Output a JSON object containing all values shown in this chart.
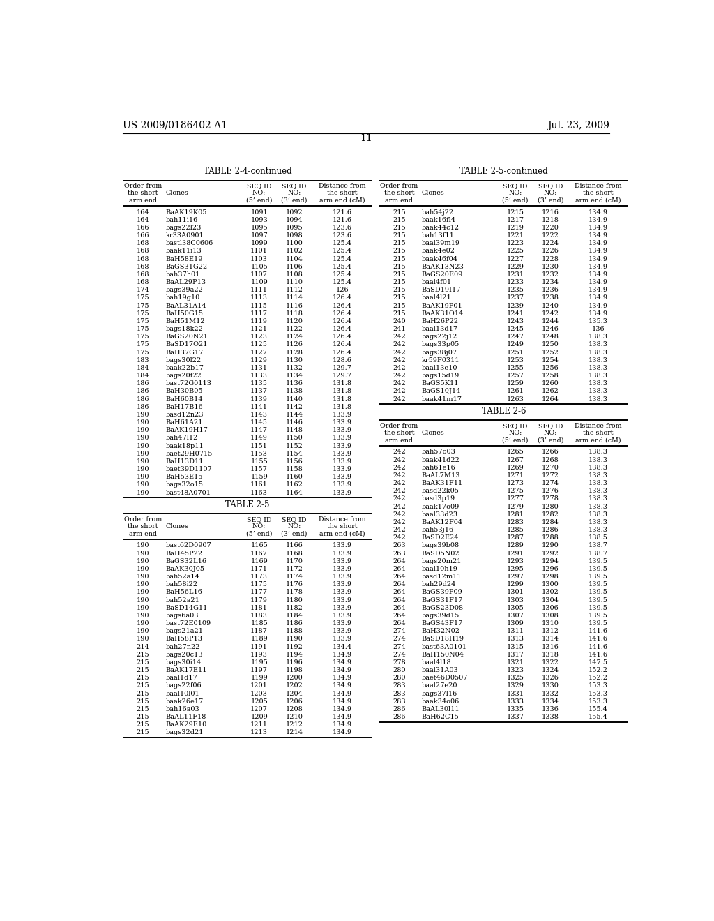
{
  "page_header_left": "US 2009/0186402 A1",
  "page_header_right": "Jul. 23, 2009",
  "page_number": "11",
  "background_color": "#ffffff",
  "text_color": "#000000",
  "table_24_title": "TABLE 2-4-continued",
  "table_24_col_headers": [
    "Order from\nthe short\narm end",
    "Clones",
    "SEQ ID\nNO:\n(5’ end)",
    "SEQ ID\nNO:\n(3’ end)",
    "Distance from\nthe short\narm end (cM)"
  ],
  "table_24_data": [
    [
      "164",
      "BaAK19K05",
      "1091",
      "1092",
      "121.6"
    ],
    [
      "164",
      "bah11i16",
      "1093",
      "1094",
      "121.6"
    ],
    [
      "166",
      "bags22l23",
      "1095",
      "1095",
      "123.6"
    ],
    [
      "166",
      "kr33A0901",
      "1097",
      "1098",
      "123.6"
    ],
    [
      "168",
      "bastl38C0606",
      "1099",
      "1100",
      "125.4"
    ],
    [
      "168",
      "baak11i13",
      "1101",
      "1102",
      "125.4"
    ],
    [
      "168",
      "BaH58E19",
      "1103",
      "1104",
      "125.4"
    ],
    [
      "168",
      "BaGS31G22",
      "1105",
      "1106",
      "125.4"
    ],
    [
      "168",
      "bah37h01",
      "1107",
      "1108",
      "125.4"
    ],
    [
      "168",
      "BaAL29P13",
      "1109",
      "1110",
      "125.4"
    ],
    [
      "174",
      "bags39a22",
      "1111",
      "1112",
      "126"
    ],
    [
      "175",
      "bah19g10",
      "1113",
      "1114",
      "126.4"
    ],
    [
      "175",
      "BaAL31A14",
      "1115",
      "1116",
      "126.4"
    ],
    [
      "175",
      "BaH50G15",
      "1117",
      "1118",
      "126.4"
    ],
    [
      "175",
      "BaH51M12",
      "1119",
      "1120",
      "126.4"
    ],
    [
      "175",
      "bags18k22",
      "1121",
      "1122",
      "126.4"
    ],
    [
      "175",
      "BaGS20N21",
      "1123",
      "1124",
      "126.4"
    ],
    [
      "175",
      "BaSD17O21",
      "1125",
      "1126",
      "126.4"
    ],
    [
      "175",
      "BaH37G17",
      "1127",
      "1128",
      "126.4"
    ],
    [
      "183",
      "bags30l22",
      "1129",
      "1130",
      "128.6"
    ],
    [
      "184",
      "baak22b17",
      "1131",
      "1132",
      "129.7"
    ],
    [
      "184",
      "bags20f22",
      "1133",
      "1134",
      "129.7"
    ],
    [
      "186",
      "bast72G0113",
      "1135",
      "1136",
      "131.8"
    ],
    [
      "186",
      "BaH30B05",
      "1137",
      "1138",
      "131.8"
    ],
    [
      "186",
      "BaH60B14",
      "1139",
      "1140",
      "131.8"
    ],
    [
      "186",
      "BaH17B16",
      "1141",
      "1142",
      "131.8"
    ],
    [
      "190",
      "basd12n23",
      "1143",
      "1144",
      "133.9"
    ],
    [
      "190",
      "BaH61A21",
      "1145",
      "1146",
      "133.9"
    ],
    [
      "190",
      "BaAK19H17",
      "1147",
      "1148",
      "133.9"
    ],
    [
      "190",
      "bah47l12",
      "1149",
      "1150",
      "133.9"
    ],
    [
      "190",
      "baak18p11",
      "1151",
      "1152",
      "133.9"
    ],
    [
      "190",
      "baet29H0715",
      "1153",
      "1154",
      "133.9"
    ],
    [
      "190",
      "BaH13D11",
      "1155",
      "1156",
      "133.9"
    ],
    [
      "190",
      "baet39D1107",
      "1157",
      "1158",
      "133.9"
    ],
    [
      "190",
      "BaH53E15",
      "1159",
      "1160",
      "133.9"
    ],
    [
      "190",
      "bags32o15",
      "1161",
      "1162",
      "133.9"
    ],
    [
      "190",
      "bast48A0701",
      "1163",
      "1164",
      "133.9"
    ]
  ],
  "table_25_title": "TABLE 2-5",
  "table_25_cont_title": "TABLE 2-5-continued",
  "table_25_col_headers": [
    "Order from\nthe short\narm end",
    "Clones",
    "SEQ ID\nNO:\n(5’ end)",
    "SEQ ID\nNO:\n(3’ end)",
    "Distance from\nthe short\narm end (cM)"
  ],
  "table_25_left_data": [
    [
      "190",
      "bast62D0907",
      "1165",
      "1166",
      "133.9"
    ],
    [
      "190",
      "BaH45P22",
      "1167",
      "1168",
      "133.9"
    ],
    [
      "190",
      "BaGS32L16",
      "1169",
      "1170",
      "133.9"
    ],
    [
      "190",
      "BaAK30J05",
      "1171",
      "1172",
      "133.9"
    ],
    [
      "190",
      "bah52a14",
      "1173",
      "1174",
      "133.9"
    ],
    [
      "190",
      "bah58i22",
      "1175",
      "1176",
      "133.9"
    ],
    [
      "190",
      "BaH56L16",
      "1177",
      "1178",
      "133.9"
    ],
    [
      "190",
      "bah52a21",
      "1179",
      "1180",
      "133.9"
    ],
    [
      "190",
      "BaSD14G11",
      "1181",
      "1182",
      "133.9"
    ],
    [
      "190",
      "bags6a03",
      "1183",
      "1184",
      "133.9"
    ],
    [
      "190",
      "bast72E0109",
      "1185",
      "1186",
      "133.9"
    ],
    [
      "190",
      "bags21a21",
      "1187",
      "1188",
      "133.9"
    ],
    [
      "190",
      "BaH58P13",
      "1189",
      "1190",
      "133.9"
    ],
    [
      "214",
      "bah27n22",
      "1191",
      "1192",
      "134.4"
    ],
    [
      "215",
      "bags20c13",
      "1193",
      "1194",
      "134.9"
    ],
    [
      "215",
      "bags30i14",
      "1195",
      "1196",
      "134.9"
    ],
    [
      "215",
      "BaAK17E11",
      "1197",
      "1198",
      "134.9"
    ],
    [
      "215",
      "baal1d17",
      "1199",
      "1200",
      "134.9"
    ],
    [
      "215",
      "bags22f06",
      "1201",
      "1202",
      "134.9"
    ],
    [
      "215",
      "baal10l01",
      "1203",
      "1204",
      "134.9"
    ],
    [
      "215",
      "baak26e17",
      "1205",
      "1206",
      "134.9"
    ],
    [
      "215",
      "bah16a03",
      "1207",
      "1208",
      "134.9"
    ],
    [
      "215",
      "BaAL11F18",
      "1209",
      "1210",
      "134.9"
    ],
    [
      "215",
      "BaAK29E10",
      "1211",
      "1212",
      "134.9"
    ],
    [
      "215",
      "bags32d21",
      "1213",
      "1214",
      "134.9"
    ]
  ],
  "table_25_right_data": [
    [
      "215",
      "bah54j22",
      "1215",
      "1216",
      "134.9"
    ],
    [
      "215",
      "baak16fl4",
      "1217",
      "1218",
      "134.9"
    ],
    [
      "215",
      "baak44c12",
      "1219",
      "1220",
      "134.9"
    ],
    [
      "215",
      "bah13f11",
      "1221",
      "1222",
      "134.9"
    ],
    [
      "215",
      "baal39m19",
      "1223",
      "1224",
      "134.9"
    ],
    [
      "215",
      "baak4e02",
      "1225",
      "1226",
      "134.9"
    ],
    [
      "215",
      "baak46f04",
      "1227",
      "1228",
      "134.9"
    ],
    [
      "215",
      "BaAK13N23",
      "1229",
      "1230",
      "134.9"
    ],
    [
      "215",
      "BaGS20E09",
      "1231",
      "1232",
      "134.9"
    ],
    [
      "215",
      "baal4f01",
      "1233",
      "1234",
      "134.9"
    ],
    [
      "215",
      "BaSD19I17",
      "1235",
      "1236",
      "134.9"
    ],
    [
      "215",
      "baal4l21",
      "1237",
      "1238",
      "134.9"
    ],
    [
      "215",
      "BaAK19P01",
      "1239",
      "1240",
      "134.9"
    ],
    [
      "215",
      "BaAK31O14",
      "1241",
      "1242",
      "134.9"
    ],
    [
      "240",
      "BaH26P22",
      "1243",
      "1244",
      "135.3"
    ],
    [
      "241",
      "baal13d17",
      "1245",
      "1246",
      "136"
    ],
    [
      "242",
      "bags22j12",
      "1247",
      "1248",
      "138.3"
    ],
    [
      "242",
      "bags33p05",
      "1249",
      "1250",
      "138.3"
    ],
    [
      "242",
      "bags38j07",
      "1251",
      "1252",
      "138.3"
    ],
    [
      "242",
      "kr59F0311",
      "1253",
      "1254",
      "138.3"
    ],
    [
      "242",
      "baal13e10",
      "1255",
      "1256",
      "138.3"
    ],
    [
      "242",
      "bags15d19",
      "1257",
      "1258",
      "138.3"
    ],
    [
      "242",
      "BaGS5K11",
      "1259",
      "1260",
      "138.3"
    ],
    [
      "242",
      "BaGS10J14",
      "1261",
      "1262",
      "138.3"
    ],
    [
      "242",
      "baak41m17",
      "1263",
      "1264",
      "138.3"
    ]
  ],
  "table_26_title": "TABLE 2-6",
  "table_26_col_headers": [
    "Order from\nthe short\narm end",
    "Clones",
    "SEQ ID\nNO:\n(5’ end)",
    "SEQ ID\nNO:\n(3’ end)",
    "Distance from\nthe short\narm end (cM)"
  ],
  "table_26_data": [
    [
      "242",
      "bah57o03",
      "1265",
      "1266",
      "138.3"
    ],
    [
      "242",
      "baak41d22",
      "1267",
      "1268",
      "138.3"
    ],
    [
      "242",
      "bah61e16",
      "1269",
      "1270",
      "138.3"
    ],
    [
      "242",
      "BaAL7M13",
      "1271",
      "1272",
      "138.3"
    ],
    [
      "242",
      "BaAK31F11",
      "1273",
      "1274",
      "138.3"
    ],
    [
      "242",
      "basd22k05",
      "1275",
      "1276",
      "138.3"
    ],
    [
      "242",
      "basd3p19",
      "1277",
      "1278",
      "138.3"
    ],
    [
      "242",
      "baak17o09",
      "1279",
      "1280",
      "138.3"
    ],
    [
      "242",
      "baal33d23",
      "1281",
      "1282",
      "138.3"
    ],
    [
      "242",
      "BaAK12F04",
      "1283",
      "1284",
      "138.3"
    ],
    [
      "242",
      "bah53j16",
      "1285",
      "1286",
      "138.3"
    ],
    [
      "242",
      "BaSD2E24",
      "1287",
      "1288",
      "138.5"
    ],
    [
      "263",
      "bags39b08",
      "1289",
      "1290",
      "138.7"
    ],
    [
      "263",
      "BaSD5N02",
      "1291",
      "1292",
      "138.7"
    ],
    [
      "264",
      "bags20m21",
      "1293",
      "1294",
      "139.5"
    ],
    [
      "264",
      "baal10h19",
      "1295",
      "1296",
      "139.5"
    ],
    [
      "264",
      "basd12m11",
      "1297",
      "1298",
      "139.5"
    ],
    [
      "264",
      "bah29d24",
      "1299",
      "1300",
      "139.5"
    ],
    [
      "264",
      "BaGS39P09",
      "1301",
      "1302",
      "139.5"
    ],
    [
      "264",
      "BaGS31F17",
      "1303",
      "1304",
      "139.5"
    ],
    [
      "264",
      "BaGS23D08",
      "1305",
      "1306",
      "139.5"
    ],
    [
      "264",
      "bags39d15",
      "1307",
      "1308",
      "139.5"
    ],
    [
      "264",
      "BaGS43F17",
      "1309",
      "1310",
      "139.5"
    ],
    [
      "274",
      "BaH32N02",
      "1311",
      "1312",
      "141.6"
    ],
    [
      "274",
      "BaSD18H19",
      "1313",
      "1314",
      "141.6"
    ],
    [
      "274",
      "bast63A0101",
      "1315",
      "1316",
      "141.6"
    ],
    [
      "274",
      "BaH150N04",
      "1317",
      "1318",
      "141.6"
    ],
    [
      "278",
      "baal4l18",
      "1321",
      "1322",
      "147.5"
    ],
    [
      "280",
      "baal31A03",
      "1323",
      "1324",
      "152.2"
    ],
    [
      "280",
      "baet46D0507",
      "1325",
      "1326",
      "152.2"
    ],
    [
      "283",
      "baal27e20",
      "1329",
      "1330",
      "153.3"
    ],
    [
      "283",
      "bags37l16",
      "1331",
      "1332",
      "153.3"
    ],
    [
      "283",
      "baak34o06",
      "1333",
      "1334",
      "153.3"
    ],
    [
      "286",
      "BaAL30l11",
      "1335",
      "1336",
      "155.4"
    ],
    [
      "286",
      "BaH62C15",
      "1337",
      "1338",
      "155.4"
    ]
  ]
}
